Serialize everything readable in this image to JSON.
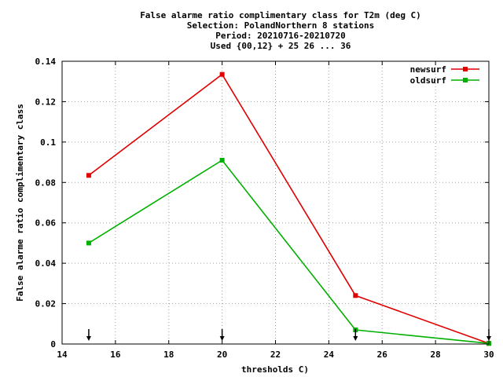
{
  "chart_data": {
    "type": "line",
    "title_lines": [
      "False alarme ratio complimentary class  for T2m (deg C)",
      "Selection: PolandNorthern      8 stations",
      "Period: 20210716-20210720",
      "Used {00,12} + 25 26 ... 36"
    ],
    "xlabel": "thresholds C)",
    "ylabel": "False alarme ratio complimentary class",
    "xlim": [
      14,
      30
    ],
    "ylim": [
      0,
      0.14
    ],
    "x_ticks": [
      "14",
      "16",
      "18",
      "20",
      "22",
      "24",
      "26",
      "28",
      "30"
    ],
    "y_ticks": [
      "0",
      "0.02",
      "0.04",
      "0.06",
      "0.08",
      "0.1",
      "0.12",
      "0.14"
    ],
    "grid": true,
    "legend_position": "top-right",
    "x": [
      15,
      20,
      25,
      30
    ],
    "series": [
      {
        "name": "newsurf",
        "color": "#e00000",
        "values": [
          0.0835,
          0.1335,
          0.024,
          0.0003
        ]
      },
      {
        "name": "oldsurf",
        "color": "#00b000",
        "values": [
          0.05,
          0.091,
          0.007,
          0.0003
        ]
      }
    ],
    "arrow_markers_x": [
      15,
      20,
      25,
      30
    ]
  }
}
